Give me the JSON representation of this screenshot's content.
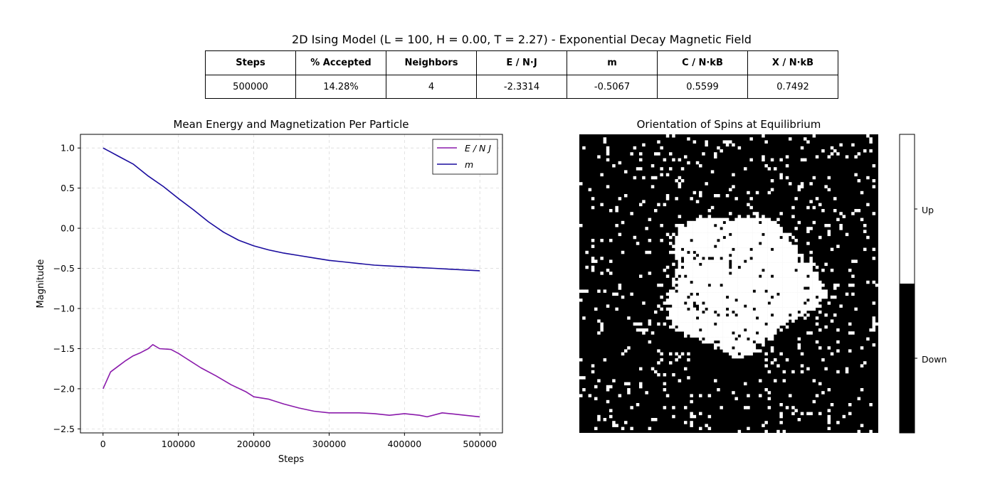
{
  "suptitle": "2D Ising Model (L = 100, H = 0.00, T = 2.27) - Exponential Decay Magnetic Field",
  "table": {
    "headers": [
      "Steps",
      "% Accepted",
      "Neighbors",
      "E / N·J",
      "m",
      "C / N·kB",
      "X / N·kB"
    ],
    "values": [
      "500000",
      "14.28%",
      "4",
      "-2.3314",
      "-0.5067",
      "0.5599",
      "0.7492"
    ]
  },
  "chart_data": [
    {
      "type": "line",
      "title": "Mean Energy and Magnetization Per Particle",
      "xlabel": "Steps",
      "ylabel": "Magnitude",
      "xlim": [
        -30000,
        530000
      ],
      "ylim": [
        -2.55,
        1.17
      ],
      "xticks": [
        0,
        100000,
        200000,
        300000,
        400000,
        500000
      ],
      "xtick_labels": [
        "0",
        "100000",
        "200000",
        "300000",
        "400000",
        "500000"
      ],
      "yticks": [
        1.0,
        0.5,
        0.0,
        -0.5,
        -1.0,
        -1.5,
        -2.0,
        -2.5
      ],
      "ytick_labels": [
        "1.0",
        "0.5",
        "0.0",
        "−0.5",
        "−1.0",
        "−1.5",
        "−2.0",
        "−2.5"
      ],
      "grid": true,
      "legend": "top-right",
      "series": [
        {
          "name": "E / N J",
          "color": "#8a1aab",
          "x": [
            0,
            10000,
            20000,
            30000,
            40000,
            50000,
            60000,
            66000,
            75000,
            90000,
            100000,
            110000,
            130000,
            150000,
            170000,
            190000,
            200000,
            220000,
            240000,
            260000,
            280000,
            300000,
            320000,
            340000,
            360000,
            380000,
            400000,
            420000,
            430000,
            450000,
            460000,
            480000,
            490000,
            500000
          ],
          "y": [
            -2.0,
            -1.79,
            -1.72,
            -1.65,
            -1.59,
            -1.55,
            -1.5,
            -1.45,
            -1.5,
            -1.51,
            -1.56,
            -1.62,
            -1.74,
            -1.84,
            -1.95,
            -2.04,
            -2.1,
            -2.13,
            -2.19,
            -2.24,
            -2.28,
            -2.3,
            -2.3,
            -2.3,
            -2.31,
            -2.33,
            -2.31,
            -2.33,
            -2.35,
            -2.3,
            -2.31,
            -2.33,
            -2.34,
            -2.35
          ]
        },
        {
          "name": "m",
          "color": "#1a0c9e",
          "x": [
            0,
            10000,
            20000,
            40000,
            60000,
            80000,
            100000,
            120000,
            140000,
            160000,
            180000,
            200000,
            220000,
            240000,
            260000,
            280000,
            300000,
            320000,
            340000,
            360000,
            380000,
            400000,
            420000,
            440000,
            460000,
            480000,
            500000
          ],
          "y": [
            1.0,
            0.95,
            0.9,
            0.8,
            0.65,
            0.52,
            0.37,
            0.23,
            0.08,
            -0.05,
            -0.15,
            -0.22,
            -0.27,
            -0.31,
            -0.34,
            -0.37,
            -0.4,
            -0.42,
            -0.44,
            -0.46,
            -0.47,
            -0.48,
            -0.49,
            -0.5,
            -0.51,
            -0.52,
            -0.53
          ]
        }
      ]
    },
    {
      "type": "heatmap",
      "title": "Orientation of Spins at Equilibrium",
      "lattice_size": 100,
      "values": [
        "down",
        "up"
      ],
      "colorbar_labels": [
        "Down",
        "Up"
      ],
      "colors": {
        "up": "#ffffff",
        "down": "#000000"
      },
      "cluster": {
        "center_col": 53,
        "center_row": 49,
        "radius": 25
      },
      "minority_fraction": 0.06
    }
  ]
}
